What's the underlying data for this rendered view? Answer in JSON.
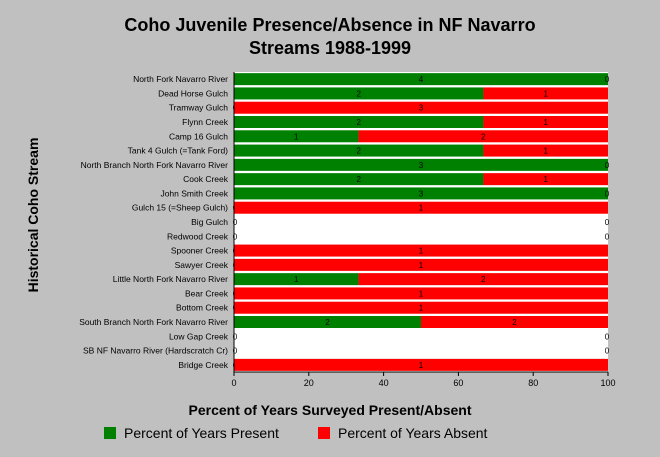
{
  "chart_data": {
    "type": "bar",
    "orientation": "horizontal",
    "stacked": true,
    "title": "Coho Juvenile Presence/Absence in NF Navarro Streams 1988-1999",
    "title_lines": [
      "Coho Juvenile Presence/Absence in NF Navarro",
      "Streams 1988-1999"
    ],
    "xlabel": "Percent of Years Surveyed Present/Absent",
    "ylabel": "Historical Coho Stream",
    "xlim": [
      0,
      100
    ],
    "xticks": [
      0,
      20,
      40,
      60,
      80,
      100
    ],
    "grid": false,
    "legend_position": "bottom",
    "categories": [
      "North Fork Navarro River",
      "Dead Horse Gulch",
      "Tramway Gulch",
      "Flynn Creek",
      "Camp 16 Gulch",
      "Tank 4 Gulch (=Tank Ford)",
      "North Branch North Fork Navarro River",
      "Cook Creek",
      "John Smith Creek",
      "Gulch 15 (=Sheep Gulch)",
      "Big Gulch",
      "Redwood Creek",
      "Spooner Creek",
      "Sawyer Creek",
      "Little North Fork Navarro River",
      "Bear Creek",
      "Bottom Creek",
      "South Branch North Fork Navarro River",
      "Low Gap Creek",
      "SB NF Navarro River (Hardscratch Cr)",
      "Bridge Creek"
    ],
    "series": [
      {
        "name": "Percent of Years Present",
        "color": "#008000",
        "values": [
          100,
          66.7,
          0,
          66.7,
          33.3,
          66.7,
          100,
          66.7,
          100,
          0,
          0,
          0,
          0,
          0,
          33.3,
          0,
          0,
          50,
          0,
          0,
          0
        ],
        "counts": [
          4,
          2,
          0,
          2,
          1,
          2,
          3,
          2,
          3,
          0,
          0,
          0,
          0,
          0,
          1,
          0,
          0,
          2,
          0,
          0,
          0
        ]
      },
      {
        "name": "Percent of Years Absent",
        "color": "#ff0000",
        "values": [
          0,
          33.3,
          100,
          33.3,
          66.7,
          33.3,
          0,
          33.3,
          0,
          100,
          0,
          0,
          100,
          100,
          66.7,
          100,
          100,
          50,
          0,
          0,
          100
        ],
        "counts": [
          0,
          1,
          3,
          1,
          2,
          1,
          0,
          1,
          0,
          1,
          0,
          0,
          1,
          1,
          2,
          1,
          1,
          2,
          0,
          0,
          1
        ]
      }
    ]
  }
}
